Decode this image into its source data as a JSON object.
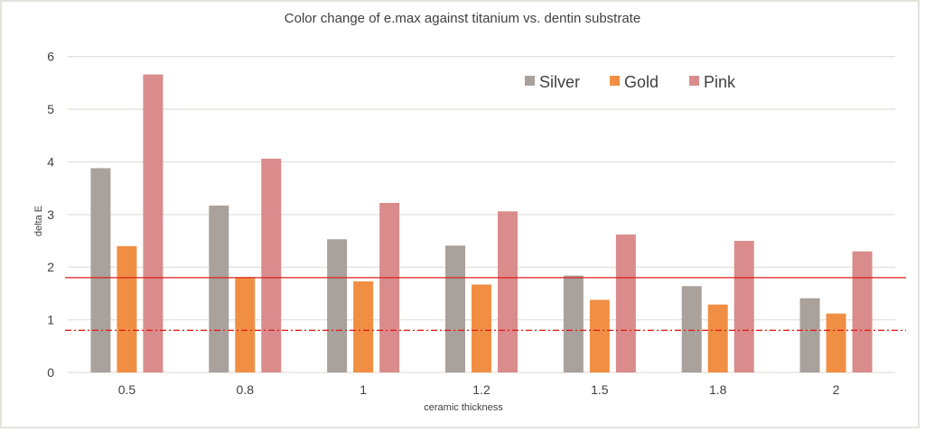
{
  "chart_data": {
    "type": "bar",
    "title": "Color change of e.max against titanium vs. dentin substrate",
    "xlabel": "ceramic thickness",
    "ylabel": "delta E",
    "ylim": [
      0,
      6
    ],
    "yticks": [
      0,
      1,
      2,
      3,
      4,
      5,
      6
    ],
    "grid": true,
    "legend_position": "top-right",
    "categories": [
      "0.5",
      "0.8",
      "1",
      "1.2",
      "1.5",
      "1.8",
      "2"
    ],
    "series": [
      {
        "name": "Silver",
        "color": "#a9a19c",
        "values": [
          3.88,
          3.17,
          2.53,
          2.41,
          1.84,
          1.64,
          1.41
        ]
      },
      {
        "name": "Gold",
        "color": "#f08f44",
        "values": [
          2.4,
          1.81,
          1.73,
          1.67,
          1.38,
          1.29,
          1.12
        ]
      },
      {
        "name": "Pink",
        "color": "#d98c8b",
        "values": [
          5.66,
          4.06,
          3.22,
          3.06,
          2.62,
          2.5,
          2.3
        ]
      }
    ],
    "reference_lines": [
      {
        "value": 1.8,
        "style": "solid",
        "color": "#e0201b"
      },
      {
        "value": 0.8,
        "style": "dash-dot",
        "color": "#e0201b"
      }
    ]
  }
}
